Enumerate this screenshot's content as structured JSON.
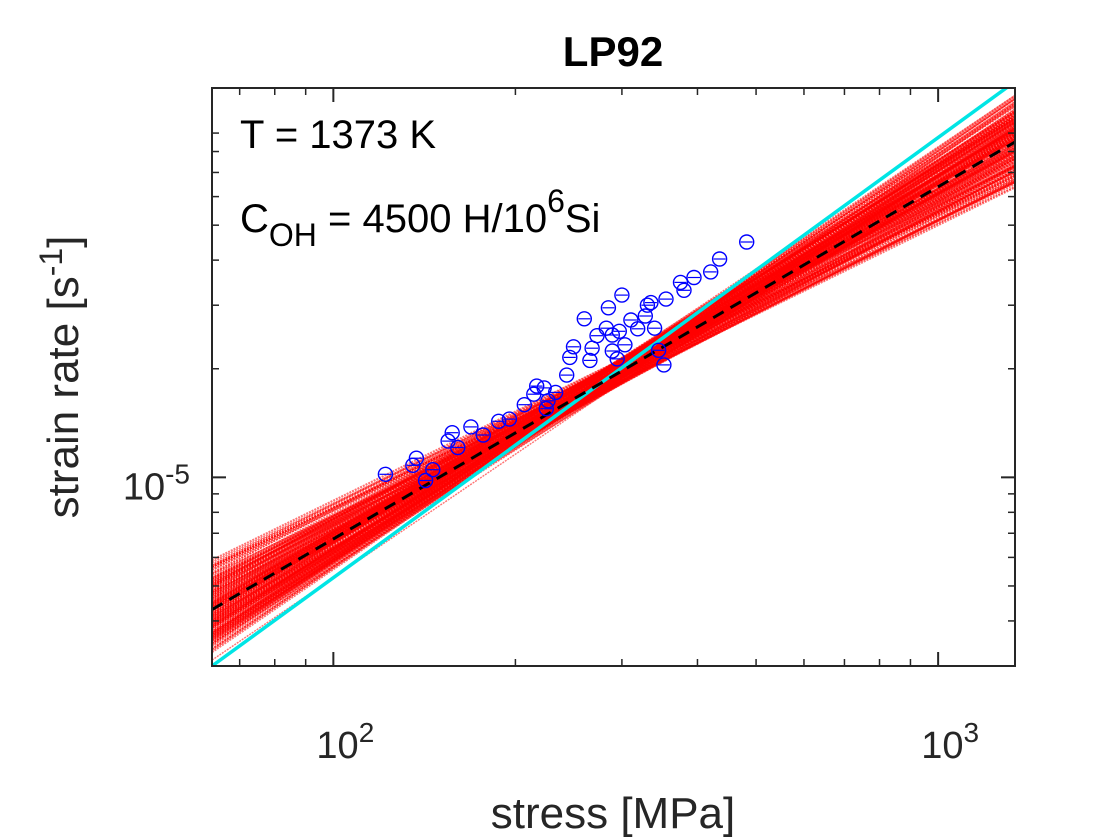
{
  "chart_data": {
    "type": "scatter",
    "title": "LP92",
    "xlabel": "stress [MPa]",
    "ylabel_main": "strain rate [s",
    "ylabel_sup": "-1",
    "ylabel_close": "]",
    "x_scale": "log",
    "y_scale": "log",
    "xlim": [
      63,
      1340
    ],
    "ylim": [
      3e-06,
      0.00012
    ],
    "x_ticks": [
      {
        "value": 100,
        "base": "10",
        "exp": "2"
      },
      {
        "value": 1000,
        "base": "10",
        "exp": "3"
      }
    ],
    "y_ticks": [
      {
        "value": 1e-05,
        "base": "10",
        "exp": "-5"
      }
    ],
    "annotations": {
      "temperature": "T = 1373 K",
      "coh_prefix": "C",
      "coh_sub": "OH",
      "coh_mid": " = 4500 H/10",
      "coh_sup": "6",
      "coh_suffix": "Si"
    },
    "colors": {
      "data_points": "#0000ff",
      "bootstrap_fits": "#ff0000",
      "best_fit": "#000000",
      "reference_fit": "#00e5e5"
    },
    "fit_line": {
      "x": [
        63,
        1340
      ],
      "y": [
        4.3e-06,
        8.5e-05
      ]
    },
    "reference_line": {
      "x": [
        63,
        1340
      ],
      "y": [
        3e-06,
        0.000125
      ]
    },
    "points": [
      [
        121.9,
        1.02e-05
      ],
      [
        135.3,
        1.08e-05
      ],
      [
        137.2,
        1.13e-05
      ],
      [
        142.1,
        9.8e-06
      ],
      [
        146.0,
        1.05e-05
      ],
      [
        154.8,
        1.26e-05
      ],
      [
        157.2,
        1.33e-05
      ],
      [
        160.6,
        1.21e-05
      ],
      [
        168.8,
        1.38e-05
      ],
      [
        176.9,
        1.31e-05
      ],
      [
        187.7,
        1.43e-05
      ],
      [
        195.5,
        1.45e-05
      ],
      [
        206.9,
        1.59e-05
      ],
      [
        214.5,
        1.7e-05
      ],
      [
        216.9,
        1.79e-05
      ],
      [
        223.2,
        1.77e-05
      ],
      [
        226.4,
        1.63e-05
      ],
      [
        225.0,
        1.55e-05
      ],
      [
        233.1,
        1.72e-05
      ],
      [
        243.1,
        1.92e-05
      ],
      [
        246.0,
        2.15e-05
      ],
      [
        249.5,
        2.3e-05
      ],
      [
        265.6,
        2.11e-05
      ],
      [
        267.8,
        2.28e-05
      ],
      [
        272.9,
        2.47e-05
      ],
      [
        282.7,
        2.59e-05
      ],
      [
        289.2,
        2.48e-05
      ],
      [
        289.2,
        2.24e-05
      ],
      [
        294.7,
        2.13e-05
      ],
      [
        297.0,
        2.54e-05
      ],
      [
        303.4,
        2.33e-05
      ],
      [
        310.4,
        2.73e-05
      ],
      [
        318.6,
        2.58e-05
      ],
      [
        330.6,
        3e-05
      ],
      [
        339.8,
        2.59e-05
      ],
      [
        354.9,
        3.12e-05
      ],
      [
        375.0,
        3.47e-05
      ],
      [
        394.8,
        3.58e-05
      ],
      [
        420.7,
        3.71e-05
      ],
      [
        435.1,
        4.03e-05
      ],
      [
        482.5,
        4.49e-05
      ],
      [
        260.0,
        2.75e-05
      ],
      [
        285.0,
        2.95e-05
      ],
      [
        335.0,
        3.05e-05
      ],
      [
        328.0,
        2.8e-05
      ],
      [
        345.0,
        2.25e-05
      ],
      [
        352.0,
        2.05e-05
      ],
      [
        380.0,
        3.3e-05
      ],
      [
        300.0,
        3.2e-05
      ]
    ]
  }
}
